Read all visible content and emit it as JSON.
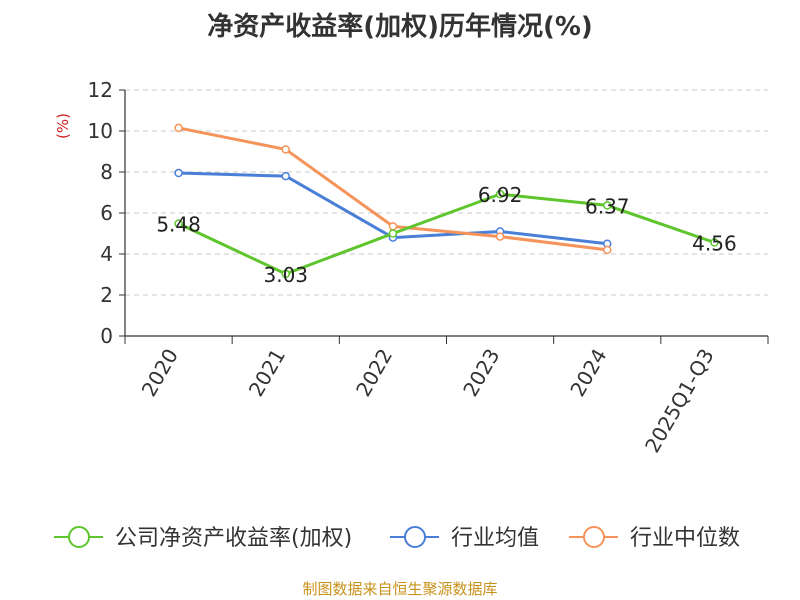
{
  "chart_data": {
    "type": "line",
    "title": "净资产收益率(加权)历年情况(%)",
    "ylabel": "(%)",
    "xlabel": "",
    "ylim": [
      0,
      12
    ],
    "yticks": [
      0,
      2,
      4,
      6,
      8,
      10,
      12
    ],
    "grid": true,
    "legend_position": "bottom",
    "categories": [
      "2020",
      "2021",
      "2022",
      "2023",
      "2024",
      "2025Q1-Q3"
    ],
    "series": [
      {
        "name": "公司净资产收益率(加权)",
        "color": "#5ec52c",
        "values": [
          5.48,
          3.03,
          5.0,
          6.92,
          6.37,
          4.56
        ],
        "labels": [
          "5.48",
          "3.03",
          "",
          "6.92",
          "6.37",
          "4.56"
        ]
      },
      {
        "name": "行业均值",
        "color": "#4a7fd8",
        "values": [
          7.95,
          7.8,
          4.8,
          5.1,
          4.5,
          null
        ]
      },
      {
        "name": "行业中位数",
        "color": "#f4935a",
        "values": [
          10.15,
          9.1,
          5.35,
          4.85,
          4.2,
          null
        ]
      }
    ]
  },
  "source_text": "制图数据来自恒生聚源数据库"
}
